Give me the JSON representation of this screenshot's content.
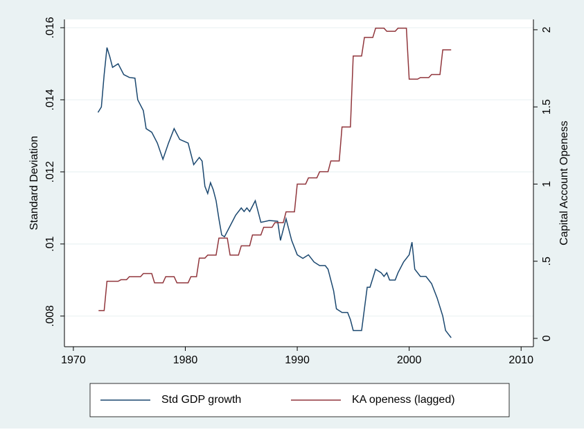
{
  "chart_data": {
    "type": "line",
    "ylabel": "Standard Deviation",
    "y2label": "Capital Account Openess",
    "xlim": [
      1969.2,
      2011.1
    ],
    "xticks": [
      1970,
      1980,
      1990,
      2000,
      2010
    ],
    "ylim": [
      0.00715,
      0.01623
    ],
    "yticks": [
      {
        "value": 0.008,
        "label": ".008"
      },
      {
        "value": 0.01,
        "label": ".01"
      },
      {
        "value": 0.012,
        "label": ".012"
      },
      {
        "value": 0.014,
        "label": ".014"
      },
      {
        "value": 0.016,
        "label": ".016"
      }
    ],
    "y2lim": [
      -0.054,
      2.067
    ],
    "y2ticks": [
      0,
      {
        "value": 0.5,
        "label": ".5"
      },
      1,
      1.5,
      2
    ],
    "grid": true,
    "legend": "bottom",
    "series": [
      {
        "name": "Std GDP growth",
        "color": "#1a476f",
        "axis": "y",
        "x": [
          1972.2,
          1972.5,
          1972.75,
          1973,
          1973.25,
          1973.5,
          1974,
          1974.5,
          1975,
          1975.5,
          1975.75,
          1976.25,
          1976.5,
          1977,
          1977.5,
          1978,
          1978.5,
          1979,
          1979.5,
          1980.25,
          1980.75,
          1981.25,
          1981.5,
          1981.75,
          1982,
          1982.25,
          1982.5,
          1982.75,
          1983,
          1983.25,
          1983.5,
          1984,
          1984.5,
          1985,
          1985.25,
          1985.5,
          1985.75,
          1986.25,
          1986.75,
          1987.5,
          1988.25,
          1988.5,
          1989,
          1989.5,
          1990,
          1990.5,
          1991,
          1991.5,
          1992,
          1992.5,
          1992.75,
          1993.25,
          1993.5,
          1994,
          1994.5,
          1994.75,
          1995,
          1995.5,
          1995.75,
          1996,
          1996.25,
          1996.5,
          1997,
          1997.5,
          1997.75,
          1998,
          1998.25,
          1998.75,
          1999,
          1999.5,
          2000,
          2000.25,
          2000.5,
          2001,
          2001.5,
          2002,
          2002.5,
          2003,
          2003.25,
          2003.5,
          2003.75
        ],
        "values": [
          0.01365,
          0.0138,
          0.0147,
          0.01545,
          0.0152,
          0.0149,
          0.015,
          0.0147,
          0.01462,
          0.0146,
          0.014,
          0.0137,
          0.0132,
          0.0131,
          0.0128,
          0.01235,
          0.0128,
          0.0132,
          0.0129,
          0.0128,
          0.0122,
          0.0124,
          0.0123,
          0.0116,
          0.0114,
          0.0117,
          0.0115,
          0.0112,
          0.0107,
          0.01025,
          0.0102,
          0.0105,
          0.0108,
          0.011,
          0.0109,
          0.011,
          0.0109,
          0.0112,
          0.0106,
          0.01065,
          0.01063,
          0.0101,
          0.0107,
          0.0101,
          0.0097,
          0.0096,
          0.0097,
          0.0095,
          0.0094,
          0.0094,
          0.0093,
          0.0087,
          0.0082,
          0.0081,
          0.0081,
          0.0079,
          0.0076,
          0.0076,
          0.0076,
          0.0082,
          0.0088,
          0.0088,
          0.0093,
          0.0092,
          0.0091,
          0.0092,
          0.009,
          0.009,
          0.0092,
          0.0095,
          0.0097,
          0.01005,
          0.0093,
          0.0091,
          0.0091,
          0.0089,
          0.0085,
          0.008,
          0.0076,
          0.0075,
          0.0074
        ]
      },
      {
        "name": "KA openess (lagged)",
        "color": "#90353b",
        "axis": "y2",
        "x": [
          1972.25,
          1972.75,
          1973,
          1974,
          1974.25,
          1974.75,
          1975,
          1976,
          1976.25,
          1977,
          1977.25,
          1978,
          1978.25,
          1979,
          1979.25,
          1980.25,
          1980.5,
          1981,
          1981.25,
          1981.75,
          1982,
          1982.75,
          1983,
          1983.75,
          1984,
          1984.75,
          1985,
          1985.75,
          1986,
          1986.75,
          1987,
          1987.75,
          1988,
          1988.75,
          1989,
          1989.75,
          1990,
          1990.75,
          1991,
          1991.75,
          1992,
          1992.75,
          1993,
          1993.75,
          1994,
          1994.75,
          1995,
          1995.75,
          1996,
          1996.75,
          1997,
          1997.75,
          1998,
          1998.75,
          1999,
          1999.75,
          2000,
          2000.75,
          2001,
          2001.75,
          2002,
          2002.75,
          2003,
          2003.75
        ],
        "values": [
          0.18,
          0.18,
          0.37,
          0.37,
          0.38,
          0.38,
          0.4,
          0.4,
          0.42,
          0.42,
          0.36,
          0.36,
          0.4,
          0.4,
          0.36,
          0.36,
          0.4,
          0.4,
          0.52,
          0.52,
          0.54,
          0.54,
          0.65,
          0.65,
          0.54,
          0.54,
          0.6,
          0.6,
          0.67,
          0.67,
          0.72,
          0.72,
          0.75,
          0.75,
          0.82,
          0.82,
          1.0,
          1.0,
          1.04,
          1.04,
          1.08,
          1.08,
          1.15,
          1.15,
          1.37,
          1.37,
          1.83,
          1.83,
          1.95,
          1.95,
          2.01,
          2.01,
          1.99,
          1.99,
          2.01,
          2.01,
          1.68,
          1.68,
          1.69,
          1.69,
          1.71,
          1.71,
          1.87,
          1.87
        ]
      }
    ]
  }
}
